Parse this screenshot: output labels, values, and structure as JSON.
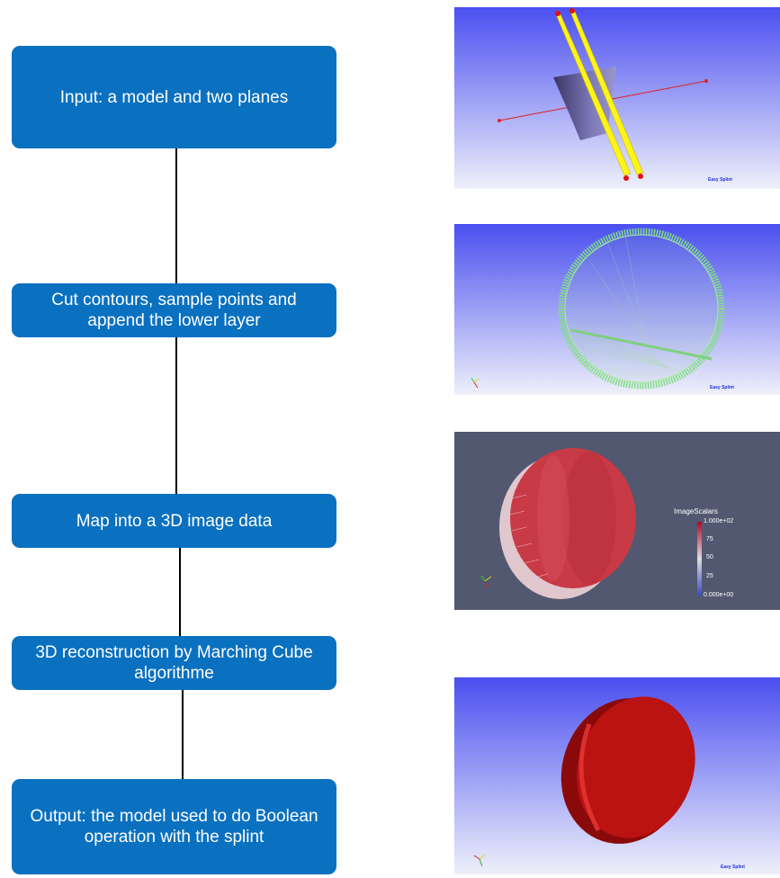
{
  "steps": [
    {
      "id": "input",
      "text": "Input: a model and two planes"
    },
    {
      "id": "cut",
      "text": "Cut contours, sample points and append the lower layer"
    },
    {
      "id": "map",
      "text": "Map into a 3D image data"
    },
    {
      "id": "reconstruct",
      "text": "3D reconstruction by Marching Cube algorithme"
    },
    {
      "id": "output",
      "text": "Output: the model used to do Boolean operation with the splint"
    }
  ],
  "panels": {
    "watermark": "Easy Splint",
    "panel3_legend": {
      "title": "ImageScalars",
      "ticks": [
        "1.000e+02",
        "75",
        "50",
        "25",
        "0.000e+00"
      ]
    }
  },
  "colors": {
    "box": "#0a70c0",
    "viewport_top": "#4b4ff0",
    "viewport_bottom": "#eef0fa",
    "paraview_bg": "#525870"
  }
}
